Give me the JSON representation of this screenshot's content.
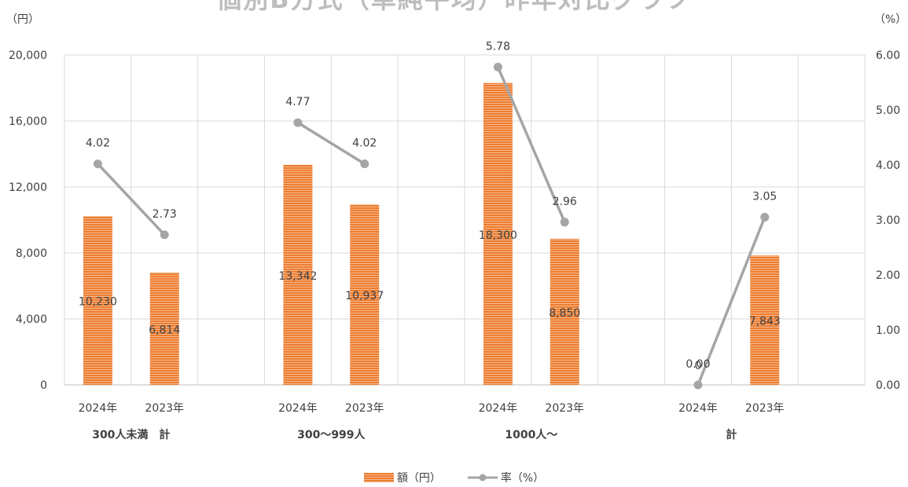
{
  "chart_data": {
    "type": "bar",
    "title": "個別B方式（単純平均）昨年対比グラフ",
    "left_unit": "（円）",
    "right_unit": "（%）",
    "y_left": {
      "min": 0,
      "max": 20000,
      "ticks": [
        "0",
        "4,000",
        "8,000",
        "12,000",
        "16,000",
        "20,000"
      ]
    },
    "y_right": {
      "min": 0,
      "max": 6,
      "ticks": [
        "0.00",
        "1.00",
        "2.00",
        "3.00",
        "4.00",
        "5.00",
        "6.00"
      ]
    },
    "groups": [
      {
        "name": "300人未満　計",
        "categories": [
          "2024年",
          "2023年"
        ]
      },
      {
        "name": "300～999人",
        "categories": [
          "2024年",
          "2023年"
        ]
      },
      {
        "name": "1000人～",
        "categories": [
          "2024年",
          "2023年"
        ]
      },
      {
        "name": "計",
        "categories": [
          "2024年",
          "2023年"
        ]
      }
    ],
    "series": [
      {
        "name": "額（円）",
        "type": "bar",
        "axis": "left",
        "color": "#ed7d31",
        "values": [
          10230,
          6814,
          13342,
          10937,
          18300,
          8850,
          0,
          7843
        ],
        "labels": [
          "10,230",
          "6,814",
          "13,342",
          "10,937",
          "18,300",
          "8,850",
          "0",
          "7,843"
        ]
      },
      {
        "name": "率（%）",
        "type": "line",
        "axis": "right",
        "color": "#a5a5a5",
        "values": [
          4.02,
          2.73,
          4.77,
          4.02,
          5.78,
          2.96,
          0.0,
          3.05
        ],
        "labels": [
          "4.02",
          "2.73",
          "4.77",
          "4.02",
          "5.78",
          "2.96",
          "0.00",
          "3.05"
        ],
        "segments": [
          [
            0,
            1
          ],
          [
            2,
            3
          ],
          [
            4,
            5
          ],
          [
            6,
            7
          ]
        ]
      }
    ],
    "grid": true,
    "legend": "bottom"
  }
}
